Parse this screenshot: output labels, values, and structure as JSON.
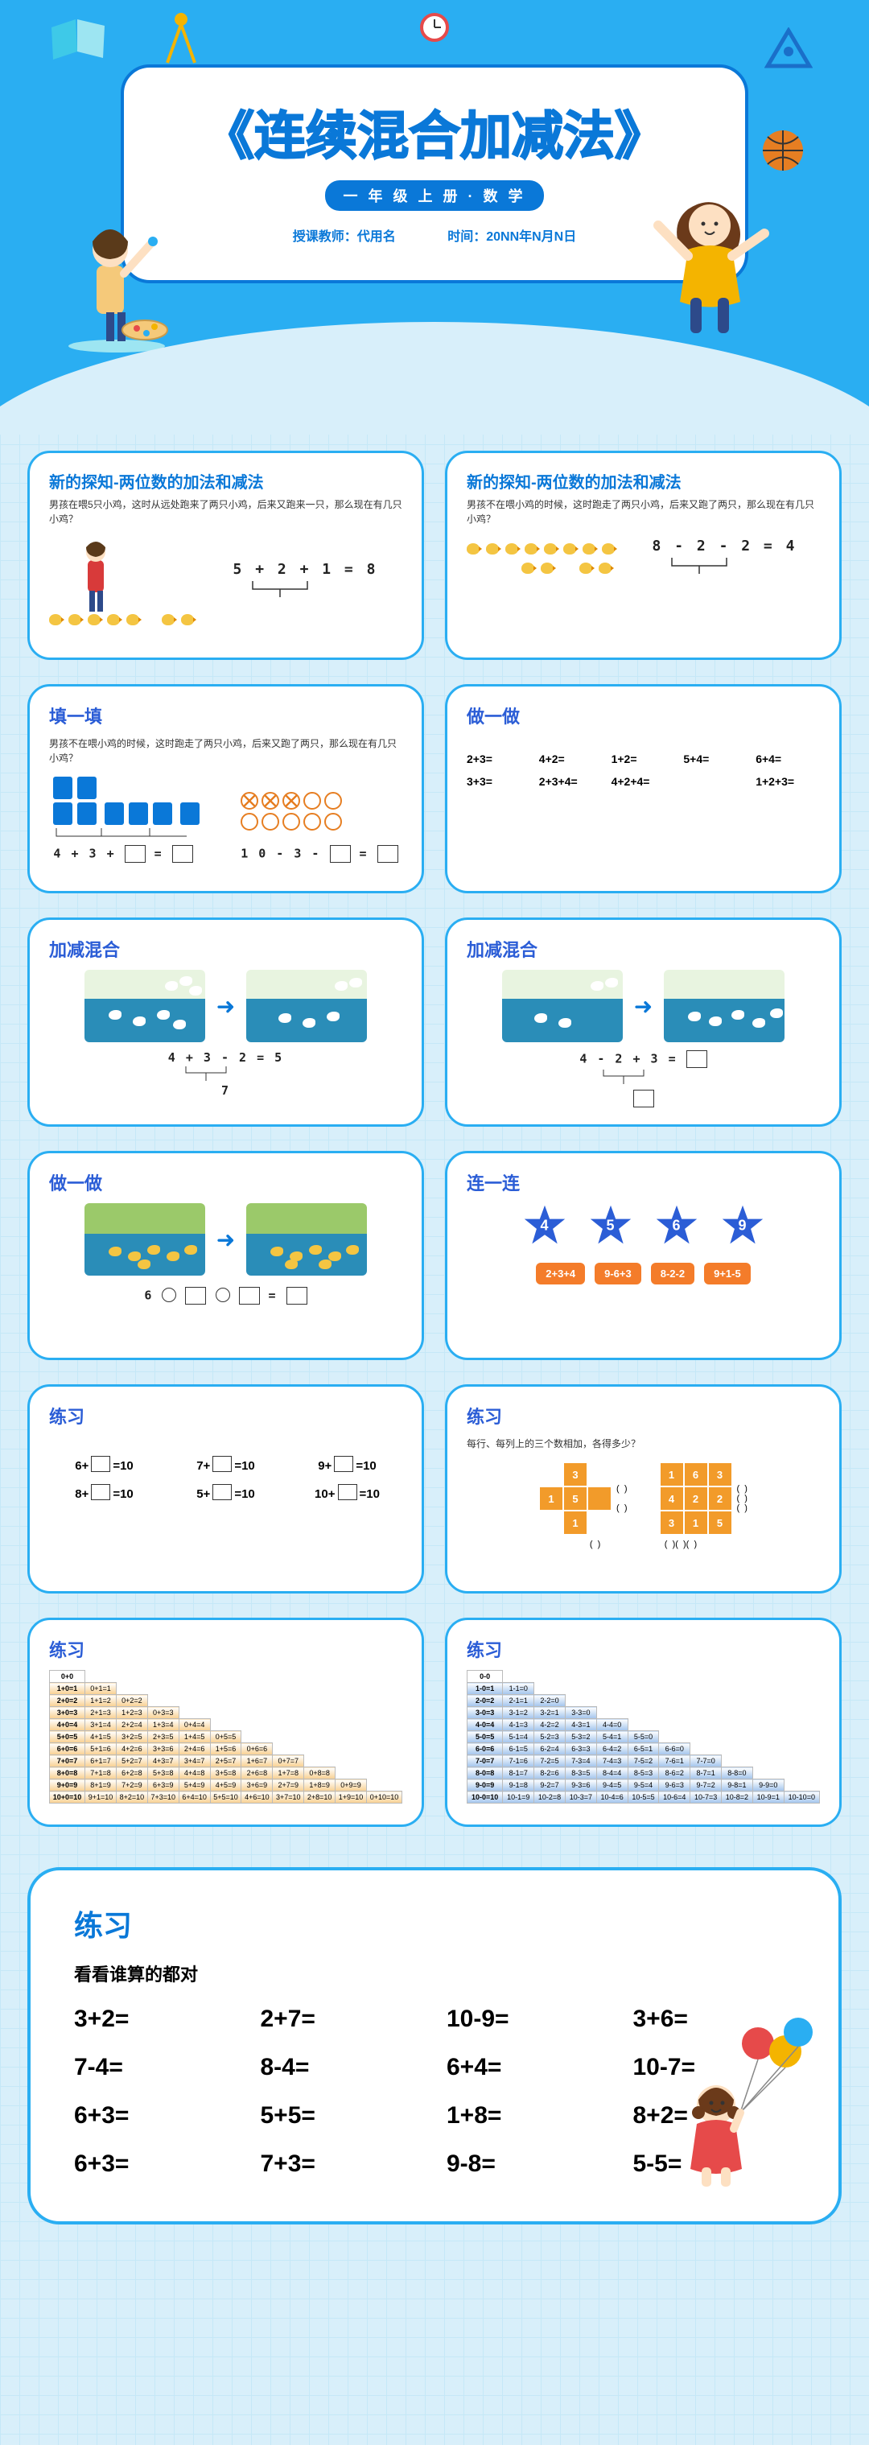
{
  "header": {
    "title": "《连续混合加减法》",
    "subtitle": "一 年 级 上 册 · 数 学",
    "teacher_label": "授课教师：代用名",
    "time_label": "时间：20NN年N月N日"
  },
  "colors": {
    "brand": "#0a78d8",
    "accent": "#2aaef2",
    "orange": "#f47c2a",
    "star": "#2b5dd6",
    "pond": "#2a8db8"
  },
  "slides": {
    "s1": {
      "title": "新的探知-两位数的加法和减法",
      "text": "男孩在喂5只小鸡，这时从远处跑来了两只小鸡，后来又跑来一只，那么现在有几只小鸡？",
      "eq": "5 + 2 + 1 = 8"
    },
    "s2": {
      "title": "新的探知-两位数的加法和减法",
      "text": "男孩不在喂小鸡的时候，这时跑走了两只小鸡，后来又跑了两只，那么现在有几只小鸡？",
      "eq": "8 - 2 - 2 = 4"
    },
    "s3": {
      "title": "填一填",
      "text": "男孩不在喂小鸡的时候，这时跑走了两只小鸡，后来又跑了两只，那么现在有几只小鸡？",
      "eq1": "4 + 3 + ",
      "eq1b": " = ",
      "eq2": "1 0 - 3 - ",
      "eq2b": " = "
    },
    "s4": {
      "title": "做一做",
      "items": [
        "2+3=",
        "4+2=",
        "1+2=",
        "5+4=",
        "6+4=",
        "3+3=",
        "2+3+4=",
        "4+2+4=",
        "",
        "1+2+3="
      ]
    },
    "s5": {
      "title": "加减混合",
      "eq_top": "4 + 3 - 2 = 5",
      "eq_under": "7"
    },
    "s6": {
      "title": "加减混合",
      "eq_top": "4 - 2 + 3 = ",
      "eq_under": ""
    },
    "s7": {
      "title": "做一做",
      "eq": "6 ◯ ▢ ◯ ▢ = ▢"
    },
    "s8": {
      "title": "连一连",
      "stars": [
        "4",
        "5",
        "6",
        "9"
      ],
      "pills": [
        "2+3+4",
        "9-6+3",
        "8-2-2",
        "9+1-5"
      ]
    },
    "s9": {
      "title": "练习",
      "items": [
        "6+▢=10",
        "7+▢=10",
        "9+▢=10",
        "8+▢=10",
        "5+▢=10",
        "10+▢=10"
      ]
    },
    "s10": {
      "title": "练习",
      "sub": "每行、每列上的三个数相加，各得多少？",
      "cross": [
        "",
        "3",
        "",
        "1",
        "5",
        "",
        "",
        "1",
        ""
      ],
      "nine": [
        "1",
        "6",
        "3",
        "4",
        "2",
        "2",
        "3",
        "1",
        "5"
      ]
    },
    "s11": {
      "title": "练习"
    },
    "s12": {
      "title": "练习"
    }
  },
  "final": {
    "title": "练习",
    "sub": "看看谁算的都对",
    "items": [
      "3+2=",
      "2+7=",
      "10-9=",
      "3+6=",
      "7-4=",
      "8-4=",
      "6+4=",
      "10-7=",
      "6+3=",
      "5+5=",
      "1+8=",
      "8+2=",
      "6+3=",
      "7+3=",
      "9-8=",
      "5-5="
    ]
  }
}
